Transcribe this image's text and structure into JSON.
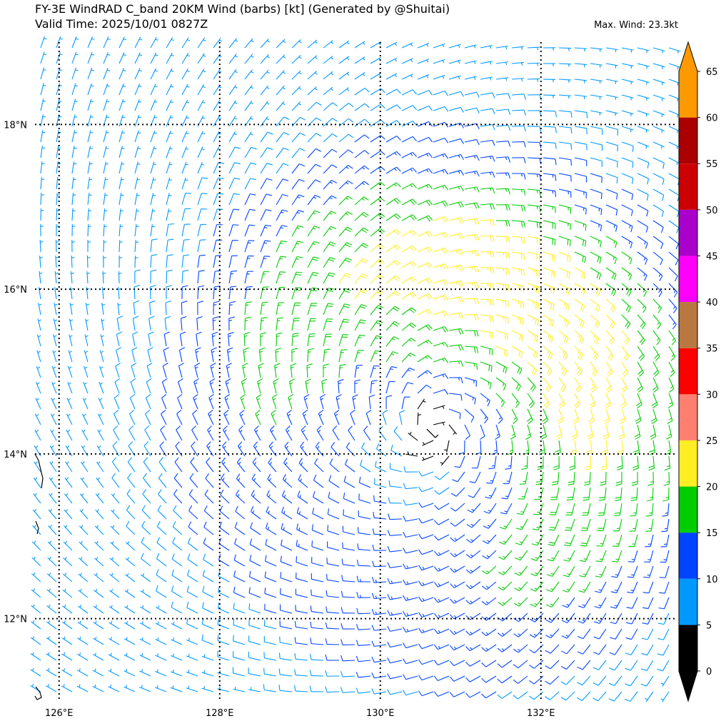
{
  "title": {
    "line1": "FY-3E WindRAD C_band 20KM Wind (barbs) [kt] (Generated by @Shuitai)",
    "line2": "Valid Time: 2025/10/01 0827Z",
    "max_wind": "Max. Wind: 23.3kt"
  },
  "map": {
    "lon_labels": [
      "126°E",
      "128°E",
      "130°E",
      "132°E"
    ],
    "lon_values": [
      126,
      128,
      130,
      132
    ],
    "lat_labels": [
      "18°N",
      "16°N",
      "14°N",
      "12°N"
    ],
    "lat_values": [
      18,
      16,
      14,
      12
    ],
    "lon_range": [
      125.7,
      133.7
    ],
    "lat_range": [
      11.0,
      19.0
    ],
    "grid": "dotted",
    "cyclone_center": {
      "lon": 130.65,
      "lat": 14.25
    }
  },
  "colorbar": {
    "tick_labels": [
      "0",
      "5",
      "10",
      "15",
      "20",
      "25",
      "30",
      "35",
      "40",
      "45",
      "50",
      "55",
      "60",
      "65"
    ],
    "bounds": [
      0,
      5,
      10,
      15,
      20,
      25,
      30,
      35,
      40,
      45,
      50,
      55,
      60,
      65
    ],
    "colors": [
      "#000000",
      "#0099ff",
      "#0044ff",
      "#00cc00",
      "#ffee22",
      "#ff8070",
      "#ff0000",
      "#b87840",
      "#ff00ff",
      "#aa00cc",
      "#cc0000",
      "#aa0000",
      "#ff9900"
    ],
    "extend": "both",
    "under_color": "#000000",
    "over_color": "#ff9900"
  },
  "chart_data": {
    "type": "wind-barbs",
    "units": "kt",
    "circulation": "cyclonic",
    "center": {
      "lon": 130.65,
      "lat": 14.25
    },
    "max_wind_kt": 23.3
  }
}
